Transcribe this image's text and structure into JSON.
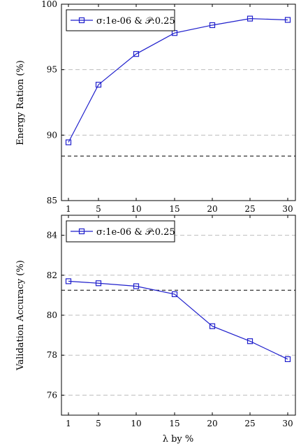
{
  "chart_data": [
    {
      "type": "line",
      "categories": [
        "1",
        "5",
        "10",
        "15",
        "20",
        "25",
        "30"
      ],
      "ylabel": "Energy Ration (%)",
      "ylim": [
        85,
        100
      ],
      "yticks": [
        "85",
        "90",
        "95",
        "100"
      ],
      "grid": "horizontal dashed",
      "reference_line": 88.4,
      "legend_position": "top-left",
      "series": [
        {
          "name": "σ:1e-06 & 𝒫:0.25",
          "color": "#1f1fcc",
          "marker": "square",
          "values": [
            89.45,
            93.85,
            96.2,
            97.8,
            98.4,
            98.9,
            98.8
          ]
        }
      ]
    },
    {
      "type": "line",
      "categories": [
        "1",
        "5",
        "10",
        "15",
        "20",
        "25",
        "30"
      ],
      "xlabel": "λ by %",
      "ylabel": "Validation Accuracy (%)",
      "ylim": [
        75,
        85
      ],
      "yticks": [
        "76",
        "78",
        "80",
        "82",
        "84"
      ],
      "grid": "horizontal dashed",
      "reference_line": 81.25,
      "legend_position": "top-left",
      "series": [
        {
          "name": "σ:1e-06 & 𝒫:0.25",
          "color": "#1f1fcc",
          "marker": "square",
          "values": [
            81.7,
            81.6,
            81.45,
            81.05,
            79.45,
            78.7,
            77.8
          ]
        }
      ]
    }
  ]
}
